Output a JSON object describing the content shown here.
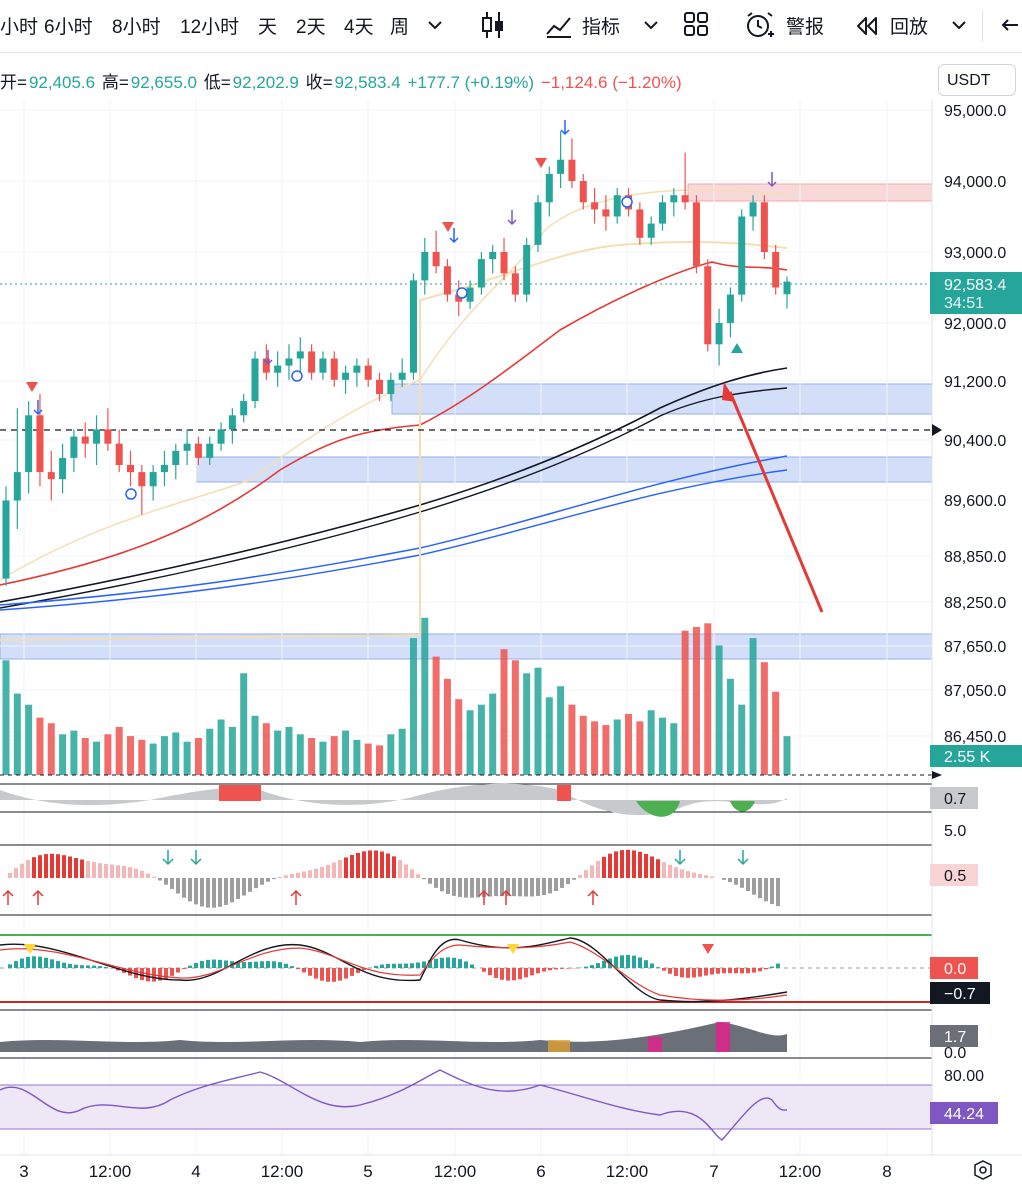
{
  "toolbar": {
    "intervals": [
      "小时",
      "6小时",
      "8小时",
      "12小时",
      "天",
      "2天",
      "4天",
      "周"
    ],
    "indicators_label": "指标",
    "alert_label": "警报",
    "replay_label": "回放"
  },
  "ohlc": {
    "open_label": "开=",
    "open": "92,405.6",
    "high_label": "高=",
    "high": "92,655.0",
    "low_label": "低=",
    "low": "92,202.9",
    "close_label": "收=",
    "close": "92,583.4",
    "change": "+177.7 (+0.19%)",
    "change2": "−1,124.6 (−1.20%)"
  },
  "currency": "USDT",
  "chart_data": {
    "type": "candlestick",
    "price_axis_ticks": [
      "95,000.0",
      "94,000.0",
      "93,000.0",
      "92,000.0",
      "91,200.0",
      "90,400.0",
      "89,600.0",
      "88,850.0",
      "88,250.0",
      "87,650.0",
      "87,050.0",
      "86,450.0"
    ],
    "x_ticks": [
      "3",
      "12:00",
      "4",
      "12:00",
      "5",
      "12:00",
      "6",
      "12:00",
      "7",
      "12:00",
      "8"
    ],
    "last_price": "92,583.4",
    "countdown": "34:51",
    "colors": {
      "up": "#26a69a",
      "down": "#ef5350",
      "ma_red": "#e53935",
      "ma_black": "#131722",
      "ma_blue": "#2962ff",
      "zone_blue": "#c9d8f7",
      "zone_red": "#f8d4d4"
    },
    "ohlc_series": [
      [
        88400,
        89700,
        88300,
        89500
      ],
      [
        89500,
        90800,
        89100,
        89900
      ],
      [
        89900,
        90900,
        89600,
        90700
      ],
      [
        90700,
        91000,
        89700,
        89900
      ],
      [
        89900,
        90200,
        89500,
        89800
      ],
      [
        89800,
        90300,
        89600,
        90100
      ],
      [
        90100,
        90500,
        89900,
        90400
      ],
      [
        90400,
        90600,
        90100,
        90300
      ],
      [
        90300,
        90700,
        90000,
        90500
      ],
      [
        90500,
        90800,
        90200,
        90300
      ],
      [
        90300,
        90500,
        89900,
        90000
      ],
      [
        90000,
        90200,
        89700,
        89900
      ],
      [
        89900,
        90000,
        89300,
        89700
      ],
      [
        89700,
        90000,
        89500,
        89900
      ],
      [
        89900,
        90200,
        89700,
        90000
      ],
      [
        90000,
        90300,
        89800,
        90200
      ],
      [
        90200,
        90500,
        90000,
        90300
      ],
      [
        90300,
        90400,
        90000,
        90100
      ],
      [
        90100,
        90400,
        90000,
        90300
      ],
      [
        90300,
        90600,
        90200,
        90500
      ],
      [
        90500,
        90800,
        90300,
        90700
      ],
      [
        90700,
        91000,
        90600,
        90900
      ],
      [
        90900,
        91600,
        90800,
        91500
      ],
      [
        91500,
        91700,
        91200,
        91300
      ],
      [
        91300,
        91600,
        91100,
        91400
      ],
      [
        91400,
        91700,
        91200,
        91500
      ],
      [
        91500,
        91800,
        91300,
        91600
      ],
      [
        91600,
        91700,
        91200,
        91300
      ],
      [
        91300,
        91600,
        91200,
        91500
      ],
      [
        91500,
        91600,
        91100,
        91200
      ],
      [
        91200,
        91400,
        91000,
        91300
      ],
      [
        91300,
        91500,
        91100,
        91400
      ],
      [
        91400,
        91500,
        91100,
        91200
      ],
      [
        91200,
        91300,
        90900,
        91000
      ],
      [
        91000,
        91300,
        90900,
        91200
      ],
      [
        91200,
        91500,
        91100,
        91300
      ],
      [
        91300,
        92700,
        91200,
        92600
      ],
      [
        92600,
        93200,
        92400,
        93000
      ],
      [
        93000,
        93300,
        92700,
        92800
      ],
      [
        92800,
        92900,
        92300,
        92400
      ],
      [
        92400,
        92600,
        92100,
        92300
      ],
      [
        92300,
        92600,
        92200,
        92500
      ],
      [
        92500,
        93000,
        92400,
        92900
      ],
      [
        92900,
        93100,
        92700,
        93000
      ],
      [
        93000,
        93200,
        92600,
        92700
      ],
      [
        92700,
        92800,
        92300,
        92400
      ],
      [
        92400,
        93200,
        92300,
        93100
      ],
      [
        93100,
        93800,
        93000,
        93700
      ],
      [
        93700,
        94200,
        93500,
        94100
      ],
      [
        94100,
        94700,
        93900,
        94300
      ],
      [
        94300,
        94600,
        93900,
        94000
      ],
      [
        94000,
        94100,
        93600,
        93700
      ],
      [
        93700,
        93900,
        93400,
        93600
      ],
      [
        93600,
        93800,
        93300,
        93500
      ],
      [
        93500,
        93900,
        93400,
        93800
      ],
      [
        93800,
        93900,
        93500,
        93600
      ],
      [
        93600,
        93700,
        93100,
        93200
      ],
      [
        93200,
        93500,
        93100,
        93400
      ],
      [
        93400,
        93800,
        93300,
        93700
      ],
      [
        93700,
        93900,
        93500,
        93800
      ],
      [
        93800,
        94400,
        93600,
        93700
      ],
      [
        93700,
        93800,
        92700,
        92800
      ],
      [
        92800,
        92900,
        91600,
        91700
      ],
      [
        91700,
        92200,
        91400,
        92000
      ],
      [
        92000,
        92500,
        91800,
        92400
      ],
      [
        92400,
        93600,
        92300,
        93500
      ],
      [
        93500,
        93800,
        93300,
        93700
      ],
      [
        93700,
        93800,
        92900,
        93000
      ],
      [
        93000,
        93100,
        92400,
        92500
      ],
      [
        92405,
        92655,
        92203,
        92583
      ]
    ],
    "volume_series": [
      62,
      44,
      38,
      31,
      28,
      22,
      24,
      20,
      18,
      22,
      26,
      21,
      19,
      17,
      21,
      23,
      18,
      20,
      25,
      30,
      26,
      55,
      32,
      28,
      24,
      26,
      22,
      20,
      18,
      21,
      24,
      19,
      17,
      16,
      22,
      25,
      74,
      85,
      64,
      52,
      41,
      35,
      38,
      44,
      68,
      62,
      55,
      58,
      42,
      48,
      38,
      32,
      29,
      27,
      30,
      33,
      29,
      35,
      31,
      28,
      78,
      80,
      82,
      70,
      52,
      38,
      74,
      61,
      45,
      21
    ],
    "volume_badge": "2.55 K",
    "panes": [
      {
        "name": "osc1",
        "badge": "0.7"
      },
      {
        "name": "osc2",
        "badge": "0.5",
        "top_label": "5.0"
      },
      {
        "name": "macd",
        "badges": [
          "0.0",
          "−0.7"
        ]
      },
      {
        "name": "osc4",
        "badge": "1.7",
        "bottom_label": "0.0"
      },
      {
        "name": "rsi",
        "badge": "44.24",
        "levels": [
          "80.00"
        ]
      }
    ]
  }
}
